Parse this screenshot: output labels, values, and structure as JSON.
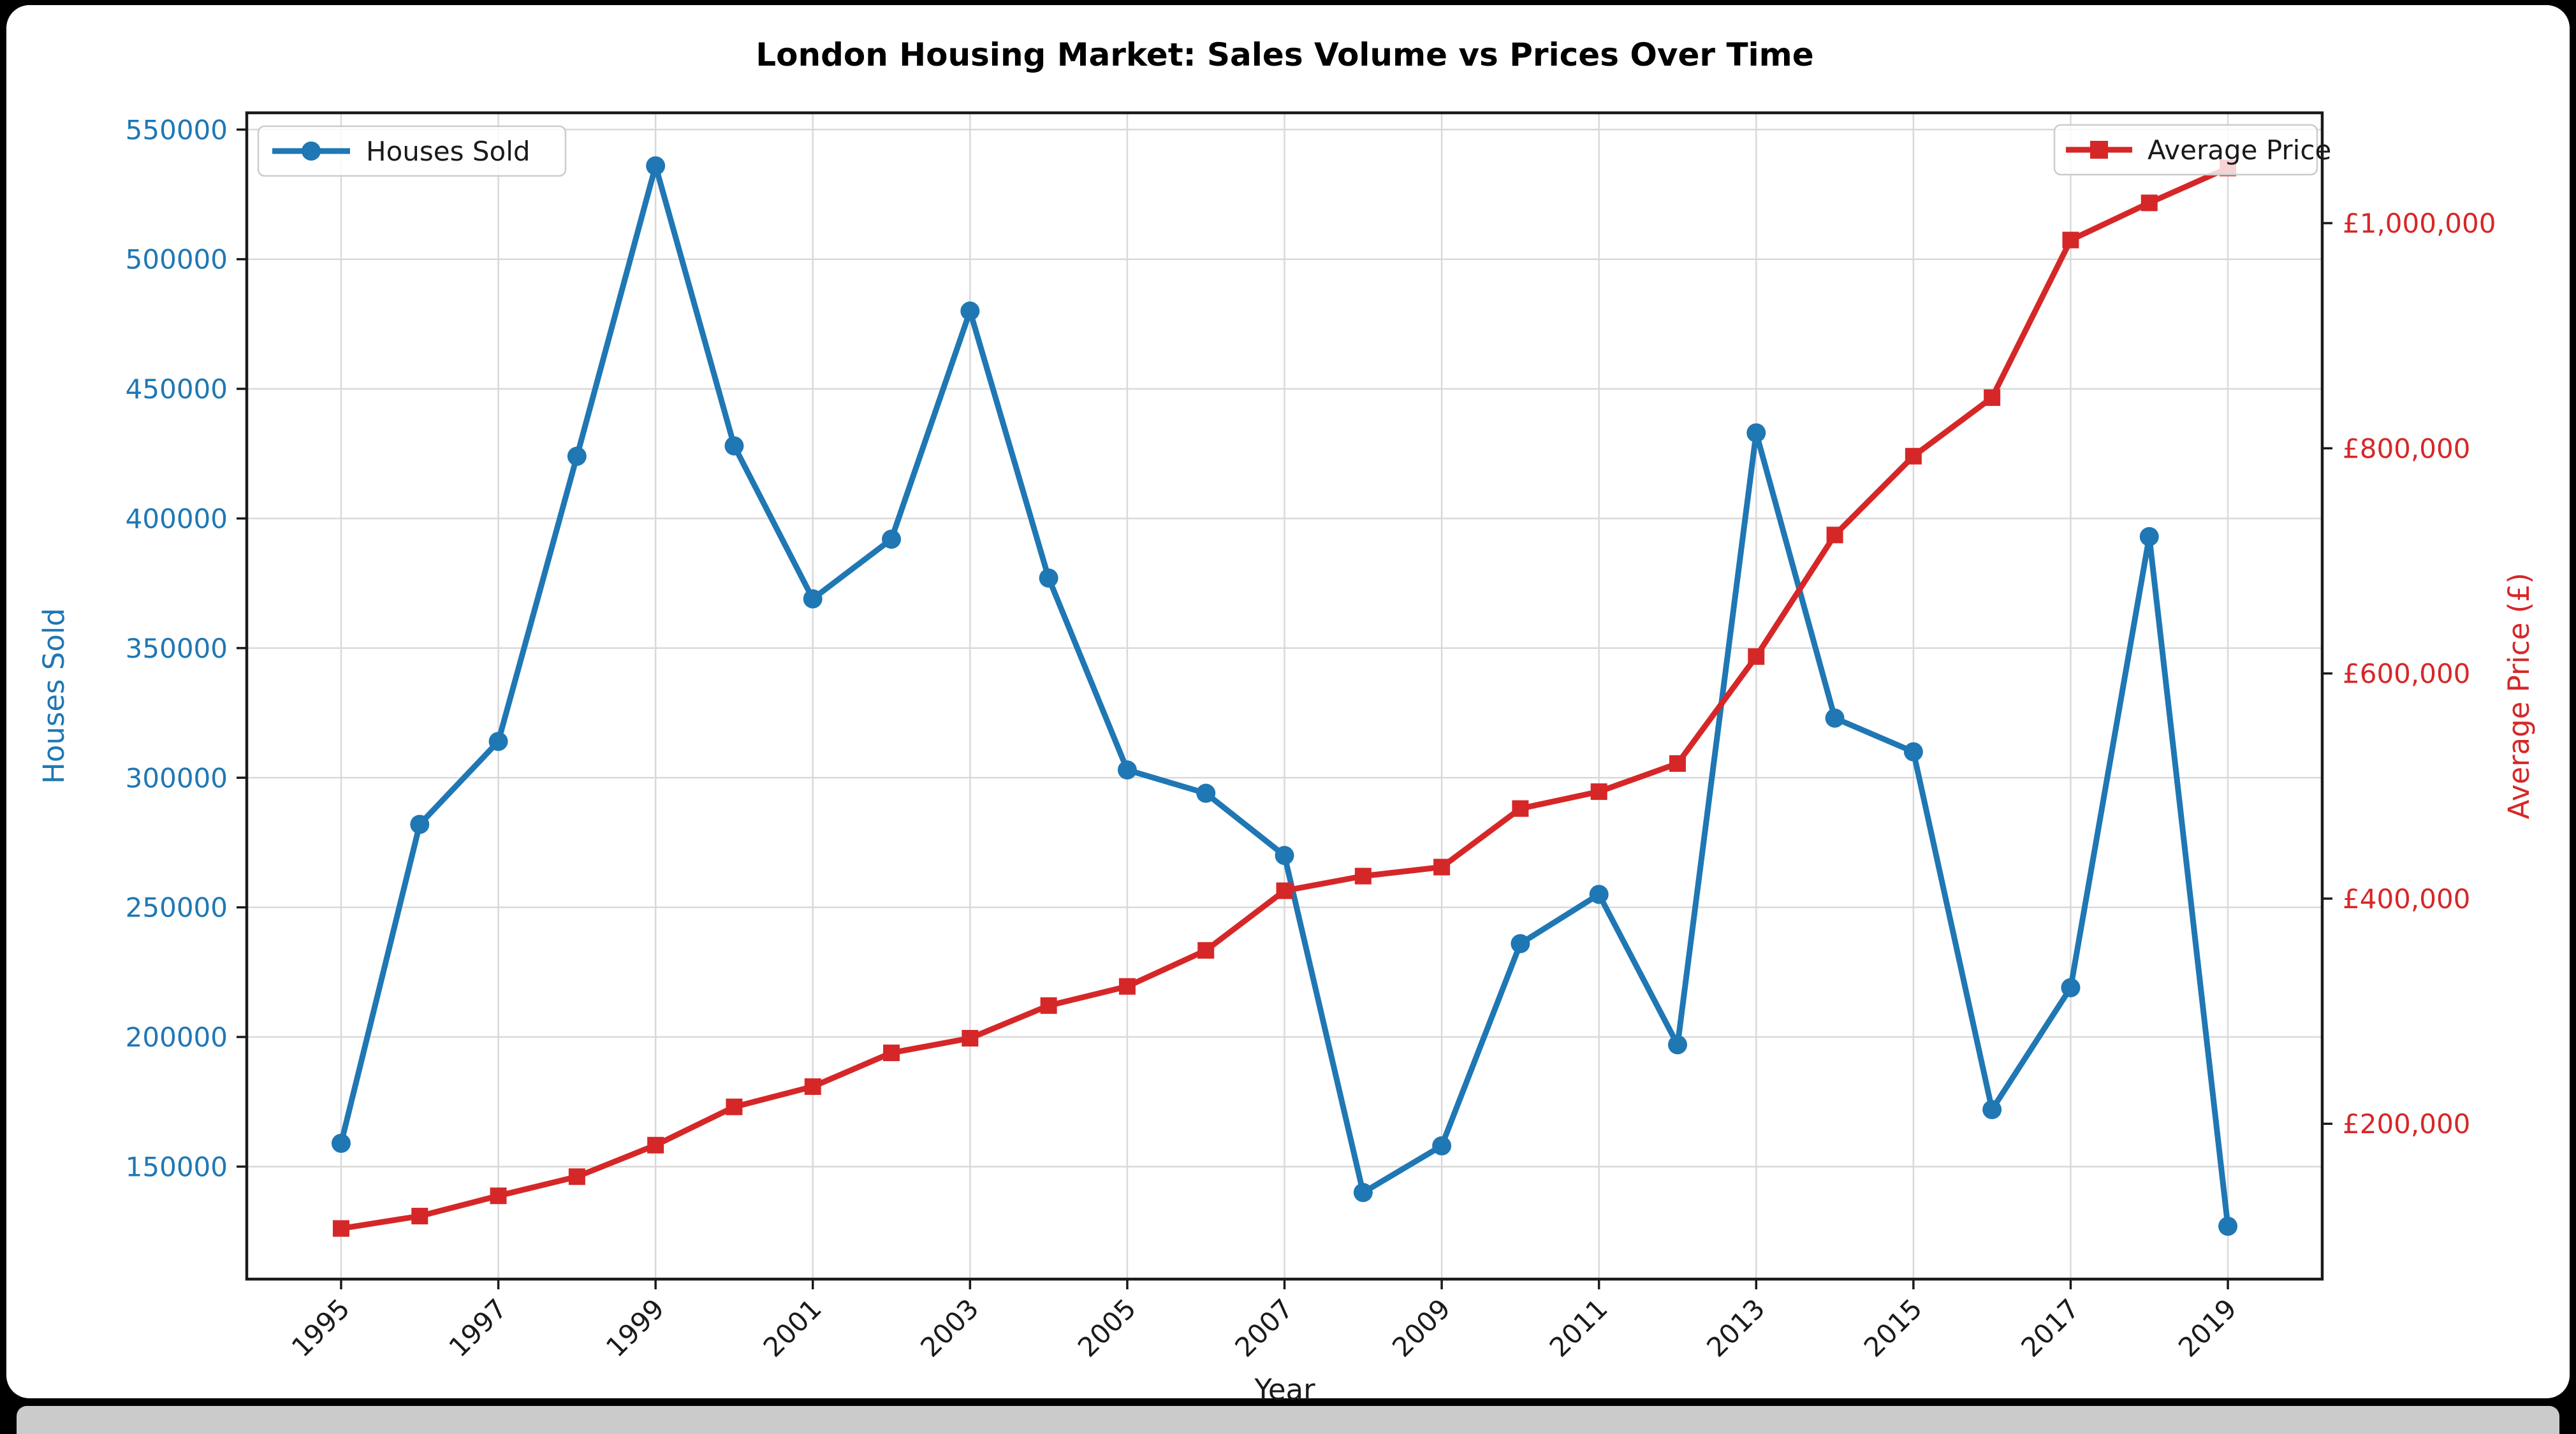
{
  "window": {
    "background_color": "#000000",
    "panel_color": "#ffffff",
    "bottom_strip_color": "#cbcbcb"
  },
  "chart_data": {
    "type": "line",
    "title": "London Housing Market: Sales Volume vs Prices Over Time",
    "xlabel": "Year",
    "ylabel_left": "Houses Sold",
    "ylabel_right": "Average Price (£)",
    "x": [
      1995,
      1996,
      1997,
      1998,
      1999,
      2000,
      2001,
      2002,
      2003,
      2004,
      2005,
      2006,
      2007,
      2008,
      2009,
      2010,
      2011,
      2012,
      2013,
      2014,
      2015,
      2016,
      2017,
      2018,
      2019
    ],
    "series": [
      {
        "name": "Houses Sold",
        "axis": "left",
        "color": "#1f77b4",
        "marker": "circle",
        "values": [
          159000,
          282000,
          314000,
          424000,
          536000,
          428000,
          369000,
          392000,
          480000,
          377000,
          303000,
          294000,
          270000,
          140000,
          158000,
          236000,
          255000,
          197000,
          433000,
          323000,
          310000,
          172000,
          219000,
          393000,
          127000
        ]
      },
      {
        "name": "Average Price",
        "axis": "right",
        "color": "#d62728",
        "marker": "square",
        "values": [
          107000,
          118000,
          136000,
          153000,
          181000,
          215000,
          233000,
          263000,
          276000,
          305000,
          322000,
          354000,
          407000,
          420000,
          428000,
          480000,
          495000,
          520000,
          615000,
          723000,
          793000,
          845000,
          985000,
          1018000,
          1049000
        ]
      }
    ],
    "xticks": [
      1995,
      1997,
      1999,
      2001,
      2003,
      2005,
      2007,
      2009,
      2011,
      2013,
      2015,
      2017,
      2019
    ],
    "yticks_left": [
      150000,
      200000,
      250000,
      300000,
      350000,
      400000,
      450000,
      500000,
      550000
    ],
    "yticks_right": [
      200000,
      400000,
      600000,
      800000,
      1000000
    ],
    "yticks_right_labels": [
      "£200,000",
      "£400,000",
      "£600,000",
      "£800,000",
      "£1,000,000"
    ],
    "xlim": [
      1993.8,
      2020.2
    ],
    "ylim_left": [
      106600,
      556465
    ],
    "ylim_right": [
      62000,
      1098000
    ],
    "grid": true,
    "grid_color": "#d9d9d9",
    "spine_color": "#1a1a1a",
    "legend": [
      "Houses Sold",
      "Average Price"
    ],
    "legend_positions": [
      "upper left",
      "upper right"
    ]
  }
}
